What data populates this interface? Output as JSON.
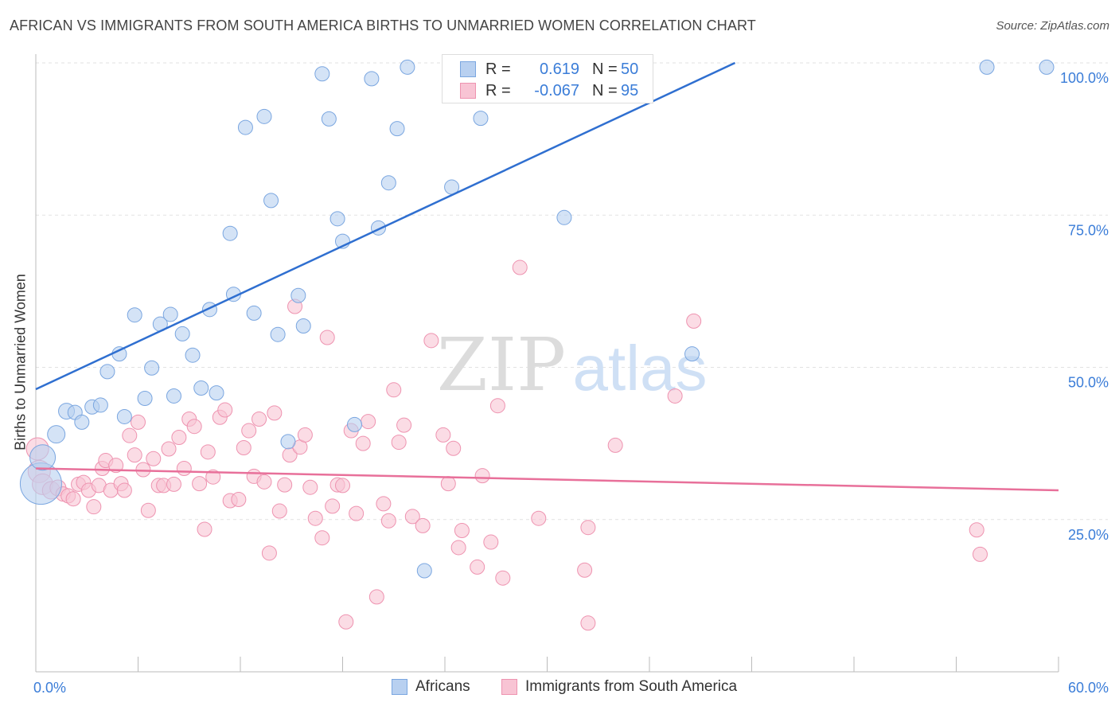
{
  "header": {
    "title": "AFRICAN VS IMMIGRANTS FROM SOUTH AMERICA BIRTHS TO UNMARRIED WOMEN CORRELATION CHART",
    "source": "Source: ZipAtlas.com"
  },
  "watermark": {
    "zip": "ZIP",
    "atlas": "atlas"
  },
  "legend": {
    "rows": [
      {
        "r_label": "R =",
        "r_value": "0.619",
        "n_label": "N =",
        "n_value": "50"
      },
      {
        "r_label": "R =",
        "r_value": "-0.067",
        "n_label": "N =",
        "n_value": "95"
      }
    ]
  },
  "colors": {
    "blue_fill": "#b8d0f0",
    "blue_stroke": "#7aa6e0",
    "blue_line": "#2f6fd0",
    "pink_fill": "#f8c4d4",
    "pink_stroke": "#ee93b0",
    "pink_line": "#e8709a",
    "tick_text": "#3b7dd8",
    "grid": "#e2e2e2"
  },
  "chart_data": {
    "type": "scatter",
    "title": "AFRICAN VS IMMIGRANTS FROM SOUTH AMERICA BIRTHS TO UNMARRIED WOMEN CORRELATION CHART",
    "xlabel": "",
    "ylabel": "Births to Unmarried Women",
    "xlim": [
      0,
      60
    ],
    "ylim": [
      0,
      105
    ],
    "x_tick_labels": [
      "0.0%",
      "60.0%"
    ],
    "y_ticks": [
      25,
      50,
      75,
      100
    ],
    "y_tick_labels": [
      "25.0%",
      "50.0%",
      "75.0%",
      "100.0%"
    ],
    "grid": true,
    "legend_position": "bottom-center",
    "series": [
      {
        "name": "Africans",
        "trend": [
          [
            0,
            46.4
          ],
          [
            60,
            124.8
          ]
        ],
        "points": [
          [
            0.3,
            30.9,
            26
          ],
          [
            0.4,
            35.2,
            16
          ],
          [
            1.2,
            39.0,
            11
          ],
          [
            1.8,
            42.8,
            10
          ],
          [
            2.3,
            42.6,
            9
          ],
          [
            2.7,
            41.0,
            9
          ],
          [
            3.3,
            43.5,
            9
          ],
          [
            3.8,
            43.8,
            9
          ],
          [
            4.2,
            49.3,
            9
          ],
          [
            4.9,
            52.2,
            9
          ],
          [
            5.2,
            41.9,
            9
          ],
          [
            5.8,
            58.6,
            9
          ],
          [
            6.4,
            44.9,
            9
          ],
          [
            6.8,
            49.9,
            9
          ],
          [
            7.3,
            57.1,
            9
          ],
          [
            7.9,
            58.7,
            9
          ],
          [
            8.1,
            45.3,
            9
          ],
          [
            8.6,
            55.5,
            9
          ],
          [
            9.2,
            52.0,
            9
          ],
          [
            9.7,
            46.6,
            9
          ],
          [
            10.2,
            59.5,
            9
          ],
          [
            10.6,
            45.8,
            9
          ],
          [
            11.4,
            72.0,
            9
          ],
          [
            11.6,
            62.0,
            9
          ],
          [
            12.3,
            89.4,
            9
          ],
          [
            12.8,
            58.9,
            9
          ],
          [
            13.4,
            91.2,
            9
          ],
          [
            13.8,
            77.4,
            9
          ],
          [
            14.2,
            55.4,
            9
          ],
          [
            14.8,
            37.8,
            9
          ],
          [
            15.4,
            61.8,
            9
          ],
          [
            15.7,
            56.8,
            9
          ],
          [
            16.8,
            98.2,
            9
          ],
          [
            17.2,
            90.8,
            9
          ],
          [
            17.7,
            74.4,
            9
          ],
          [
            18.0,
            70.7,
            9
          ],
          [
            18.7,
            40.6,
            9
          ],
          [
            19.7,
            97.4,
            9
          ],
          [
            20.1,
            72.9,
            9
          ],
          [
            20.7,
            80.3,
            9
          ],
          [
            21.2,
            89.2,
            9
          ],
          [
            21.8,
            99.3,
            9
          ],
          [
            22.8,
            16.6,
            9
          ],
          [
            24.4,
            79.6,
            9
          ],
          [
            26.1,
            90.9,
            9
          ],
          [
            31.0,
            74.6,
            9
          ],
          [
            35.4,
            99.3,
            9
          ],
          [
            38.5,
            52.2,
            9
          ],
          [
            55.8,
            99.3,
            9
          ],
          [
            59.3,
            99.3,
            9
          ]
        ]
      },
      {
        "name": "Immigrants from South America",
        "trend": [
          [
            0,
            33.4
          ],
          [
            60,
            29.8
          ]
        ],
        "points": [
          [
            0.1,
            36.6,
            14
          ],
          [
            0.2,
            32.9,
            14
          ],
          [
            0.4,
            30.8,
            13
          ],
          [
            0.9,
            29.8,
            11
          ],
          [
            1.3,
            30.2,
            10
          ],
          [
            1.6,
            29.2,
            9
          ],
          [
            1.9,
            28.9,
            9
          ],
          [
            2.2,
            28.4,
            9
          ],
          [
            2.5,
            30.8,
            9
          ],
          [
            2.8,
            31.1,
            9
          ],
          [
            3.1,
            29.8,
            9
          ],
          [
            3.4,
            27.1,
            9
          ],
          [
            3.7,
            30.6,
            9
          ],
          [
            3.9,
            33.4,
            9
          ],
          [
            4.1,
            34.7,
            9
          ],
          [
            4.4,
            29.8,
            9
          ],
          [
            4.7,
            33.9,
            9
          ],
          [
            5.0,
            30.9,
            9
          ],
          [
            5.2,
            29.8,
            9
          ],
          [
            5.5,
            38.8,
            9
          ],
          [
            5.8,
            35.6,
            9
          ],
          [
            6.0,
            41.0,
            9
          ],
          [
            6.3,
            33.2,
            9
          ],
          [
            6.6,
            26.5,
            9
          ],
          [
            6.9,
            35.0,
            9
          ],
          [
            7.2,
            30.6,
            9
          ],
          [
            7.5,
            30.6,
            9
          ],
          [
            7.8,
            36.6,
            9
          ],
          [
            8.1,
            30.8,
            9
          ],
          [
            8.4,
            38.5,
            9
          ],
          [
            8.7,
            33.4,
            9
          ],
          [
            9.0,
            41.5,
            9
          ],
          [
            9.3,
            40.3,
            9
          ],
          [
            9.6,
            30.9,
            9
          ],
          [
            9.9,
            23.4,
            9
          ],
          [
            10.1,
            36.1,
            9
          ],
          [
            10.4,
            32.0,
            9
          ],
          [
            10.8,
            41.8,
            9
          ],
          [
            11.1,
            43.0,
            9
          ],
          [
            11.4,
            28.1,
            9
          ],
          [
            11.9,
            28.3,
            9
          ],
          [
            12.2,
            36.8,
            9
          ],
          [
            12.5,
            39.6,
            9
          ],
          [
            12.8,
            32.1,
            9
          ],
          [
            13.1,
            41.5,
            9
          ],
          [
            13.4,
            31.2,
            9
          ],
          [
            13.7,
            19.5,
            9
          ],
          [
            14.0,
            42.5,
            9
          ],
          [
            14.3,
            26.4,
            9
          ],
          [
            14.6,
            30.7,
            9
          ],
          [
            14.9,
            35.6,
            9
          ],
          [
            15.2,
            60.0,
            9
          ],
          [
            15.5,
            36.9,
            9
          ],
          [
            15.8,
            38.9,
            9
          ],
          [
            16.1,
            30.3,
            9
          ],
          [
            16.4,
            25.2,
            9
          ],
          [
            16.8,
            22.0,
            9
          ],
          [
            17.1,
            54.9,
            9
          ],
          [
            17.4,
            27.2,
            9
          ],
          [
            17.7,
            30.7,
            9
          ],
          [
            18.0,
            30.6,
            9
          ],
          [
            18.2,
            8.2,
            9
          ],
          [
            18.5,
            39.6,
            9
          ],
          [
            18.8,
            26.0,
            9
          ],
          [
            19.2,
            37.5,
            9
          ],
          [
            19.5,
            41.1,
            9
          ],
          [
            20.0,
            12.3,
            9
          ],
          [
            20.4,
            27.6,
            9
          ],
          [
            20.7,
            24.8,
            9
          ],
          [
            21.0,
            46.3,
            9
          ],
          [
            21.3,
            37.7,
            9
          ],
          [
            21.6,
            40.5,
            9
          ],
          [
            22.1,
            25.5,
            9
          ],
          [
            22.7,
            24.0,
            9
          ],
          [
            23.2,
            54.4,
            9
          ],
          [
            23.9,
            38.9,
            9
          ],
          [
            24.2,
            30.9,
            9
          ],
          [
            24.5,
            36.7,
            9
          ],
          [
            24.8,
            20.4,
            9
          ],
          [
            25.0,
            23.2,
            9
          ],
          [
            25.9,
            17.2,
            9
          ],
          [
            26.2,
            32.2,
            9
          ],
          [
            26.7,
            21.3,
            9
          ],
          [
            27.1,
            43.7,
            9
          ],
          [
            27.4,
            15.4,
            9
          ],
          [
            28.4,
            66.4,
            9
          ],
          [
            29.5,
            25.2,
            9
          ],
          [
            32.2,
            16.7,
            9
          ],
          [
            32.4,
            23.7,
            9
          ],
          [
            32.4,
            8.0,
            9
          ],
          [
            34.0,
            37.2,
            9
          ],
          [
            37.5,
            45.3,
            9
          ],
          [
            38.6,
            57.6,
            9
          ],
          [
            55.2,
            23.3,
            9
          ],
          [
            55.4,
            19.3,
            9
          ]
        ]
      }
    ]
  },
  "bottom_legend": {
    "items": [
      {
        "label": "Africans"
      },
      {
        "label": "Immigrants from South America"
      }
    ]
  }
}
